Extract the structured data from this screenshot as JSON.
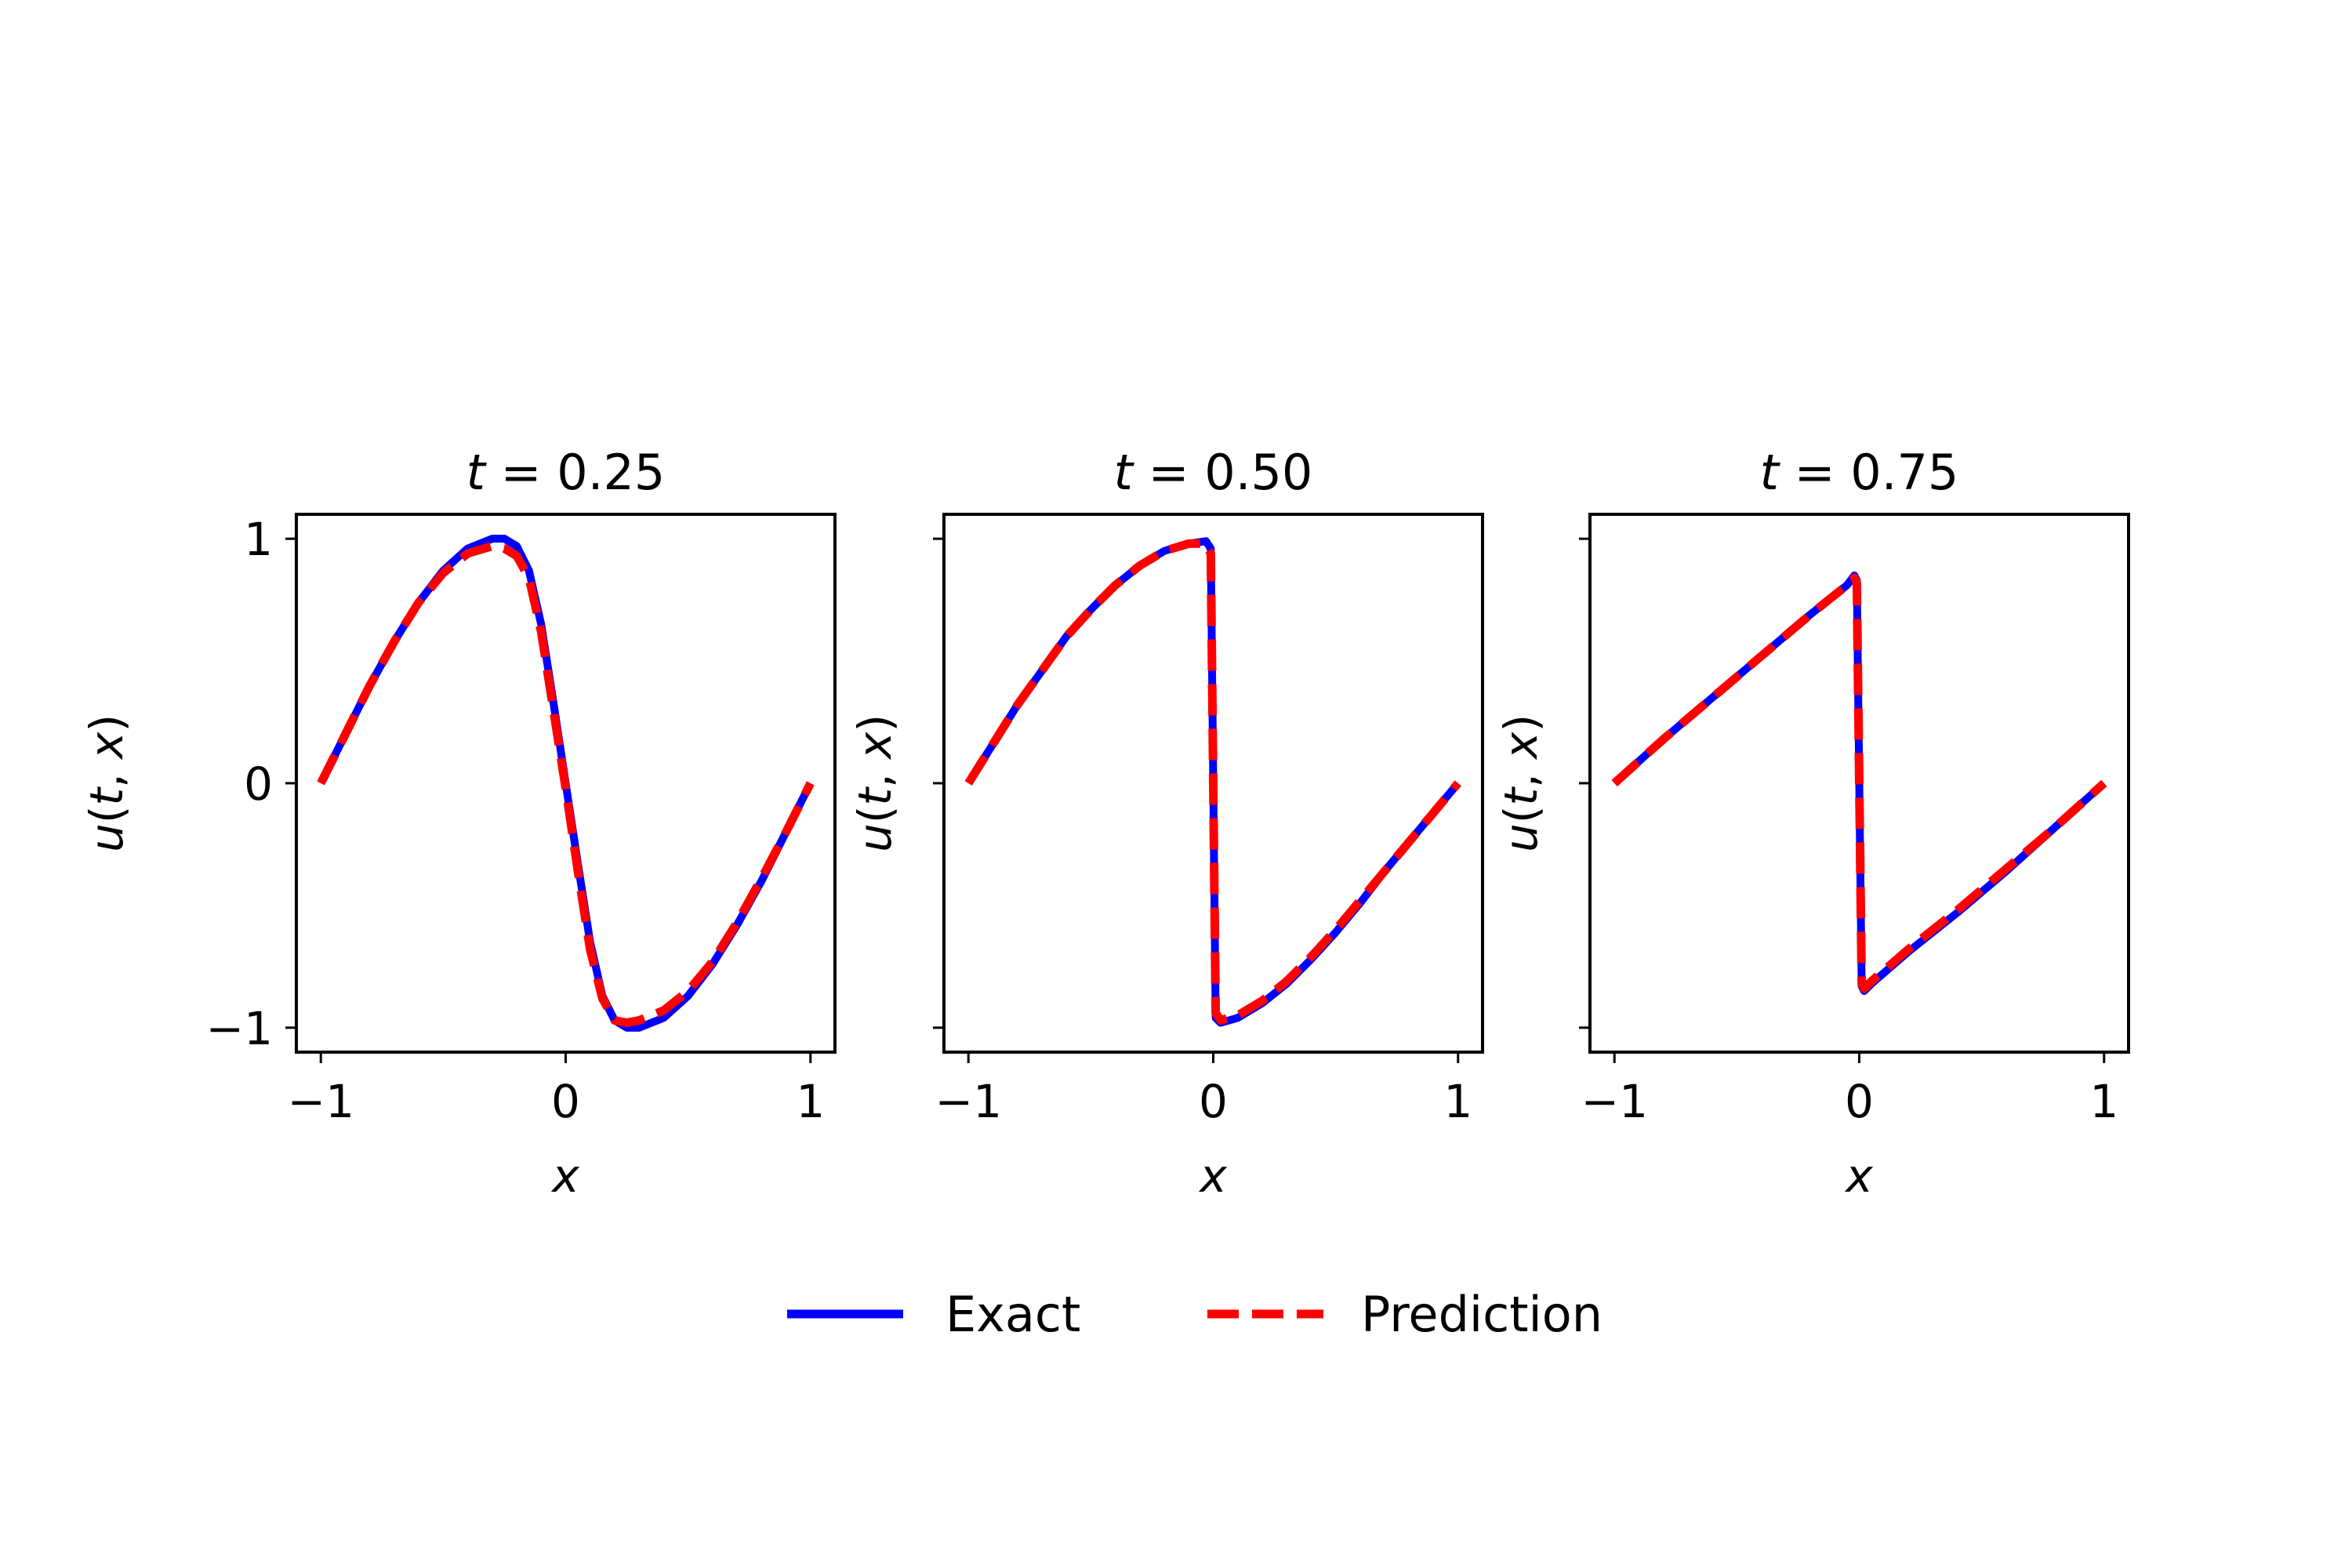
{
  "chart_data": [
    {
      "type": "line",
      "title_var": "t",
      "title_value": "0.25",
      "xlabel": "x",
      "ylabel": "u(t, x)",
      "xlim": [
        -1.1,
        1.1
      ],
      "ylim": [
        -1.1,
        1.1
      ],
      "xticks": [
        -1,
        0,
        1
      ],
      "xtick_labels": [
        "−1",
        "0",
        "1"
      ],
      "yticks": [
        -1,
        0,
        1
      ],
      "ytick_labels": [
        "−1",
        "0",
        "1"
      ],
      "show_ytick_labels": true,
      "grid": false,
      "series": [
        {
          "name": "Exact",
          "color": "#0000ff",
          "style": "solid",
          "x": [
            -1.0,
            -0.9,
            -0.8,
            -0.7,
            -0.6,
            -0.5,
            -0.4,
            -0.3,
            -0.25,
            -0.2,
            -0.15,
            -0.1,
            -0.05,
            0.0,
            0.05,
            0.1,
            0.15,
            0.2,
            0.25,
            0.3,
            0.4,
            0.5,
            0.6,
            0.7,
            0.8,
            0.9,
            1.0
          ],
          "y": [
            0.0,
            0.2,
            0.4,
            0.58,
            0.74,
            0.87,
            0.96,
            1.0,
            1.0,
            0.97,
            0.87,
            0.65,
            0.33,
            0.0,
            -0.33,
            -0.65,
            -0.87,
            -0.97,
            -1.0,
            -1.0,
            -0.96,
            -0.87,
            -0.74,
            -0.58,
            -0.4,
            -0.2,
            0.0
          ]
        },
        {
          "name": "Prediction",
          "color": "#ff0000",
          "style": "dashed",
          "x": [
            -1.0,
            -0.9,
            -0.8,
            -0.7,
            -0.6,
            -0.5,
            -0.4,
            -0.3,
            -0.25,
            -0.2,
            -0.15,
            -0.1,
            -0.05,
            0.0,
            0.05,
            0.1,
            0.15,
            0.2,
            0.25,
            0.3,
            0.4,
            0.5,
            0.6,
            0.7,
            0.8,
            0.9,
            1.0
          ],
          "y": [
            0.0,
            0.2,
            0.4,
            0.58,
            0.74,
            0.86,
            0.94,
            0.97,
            0.96,
            0.93,
            0.84,
            0.62,
            0.3,
            -0.02,
            -0.36,
            -0.68,
            -0.88,
            -0.97,
            -0.98,
            -0.97,
            -0.93,
            -0.85,
            -0.73,
            -0.57,
            -0.39,
            -0.2,
            0.0
          ]
        }
      ]
    },
    {
      "type": "line",
      "title_var": "t",
      "title_value": "0.50",
      "xlabel": "x",
      "ylabel": "u(t, x)",
      "xlim": [
        -1.1,
        1.1
      ],
      "ylim": [
        -1.1,
        1.1
      ],
      "xticks": [
        -1,
        0,
        1
      ],
      "xtick_labels": [
        "−1",
        "0",
        "1"
      ],
      "yticks": [
        -1,
        0,
        1
      ],
      "ytick_labels": [
        "",
        "",
        ""
      ],
      "show_ytick_labels": false,
      "grid": false,
      "series": [
        {
          "name": "Exact",
          "color": "#0000ff",
          "style": "solid",
          "x": [
            -1.0,
            -0.9,
            -0.8,
            -0.7,
            -0.6,
            -0.5,
            -0.4,
            -0.3,
            -0.2,
            -0.1,
            -0.03,
            -0.01,
            0.0,
            0.01,
            0.03,
            0.1,
            0.2,
            0.3,
            0.4,
            0.5,
            0.6,
            0.7,
            0.8,
            0.9,
            1.0
          ],
          "y": [
            0.0,
            0.16,
            0.32,
            0.46,
            0.6,
            0.71,
            0.81,
            0.89,
            0.95,
            0.98,
            0.99,
            0.96,
            0.0,
            -0.96,
            -0.98,
            -0.96,
            -0.9,
            -0.82,
            -0.72,
            -0.61,
            -0.49,
            -0.36,
            -0.24,
            -0.12,
            0.0
          ]
        },
        {
          "name": "Prediction",
          "color": "#ff0000",
          "style": "dashed",
          "x": [
            -1.0,
            -0.9,
            -0.8,
            -0.7,
            -0.6,
            -0.5,
            -0.4,
            -0.3,
            -0.2,
            -0.1,
            -0.03,
            -0.01,
            0.0,
            0.01,
            0.03,
            0.1,
            0.2,
            0.3,
            0.4,
            0.5,
            0.6,
            0.7,
            0.8,
            0.9,
            1.0
          ],
          "y": [
            0.0,
            0.16,
            0.32,
            0.46,
            0.6,
            0.71,
            0.81,
            0.89,
            0.95,
            0.98,
            0.98,
            0.94,
            0.0,
            -0.94,
            -0.97,
            -0.95,
            -0.89,
            -0.81,
            -0.71,
            -0.6,
            -0.48,
            -0.36,
            -0.24,
            -0.12,
            0.0
          ]
        }
      ]
    },
    {
      "type": "line",
      "title_var": "t",
      "title_value": "0.75",
      "xlabel": "x",
      "ylabel": "u(t, x)",
      "xlim": [
        -1.1,
        1.1
      ],
      "ylim": [
        -1.1,
        1.1
      ],
      "xticks": [
        -1,
        0,
        1
      ],
      "xtick_labels": [
        "−1",
        "0",
        "1"
      ],
      "yticks": [
        -1,
        0,
        1
      ],
      "ytick_labels": [
        "",
        "",
        ""
      ],
      "show_ytick_labels": false,
      "grid": false,
      "series": [
        {
          "name": "Exact",
          "color": "#0000ff",
          "style": "solid",
          "x": [
            -1.0,
            -0.8,
            -0.6,
            -0.4,
            -0.2,
            -0.05,
            -0.02,
            -0.01,
            0.0,
            0.01,
            0.02,
            0.05,
            0.2,
            0.4,
            0.6,
            0.8,
            1.0
          ],
          "y": [
            0.0,
            0.18,
            0.35,
            0.52,
            0.69,
            0.81,
            0.85,
            0.83,
            0.0,
            -0.83,
            -0.85,
            -0.82,
            -0.69,
            -0.53,
            -0.36,
            -0.18,
            0.0
          ]
        },
        {
          "name": "Prediction",
          "color": "#ff0000",
          "style": "dashed",
          "x": [
            -1.0,
            -0.8,
            -0.6,
            -0.4,
            -0.2,
            -0.05,
            -0.02,
            -0.01,
            0.0,
            0.01,
            0.02,
            0.05,
            0.2,
            0.4,
            0.6,
            0.8,
            1.0
          ],
          "y": [
            0.0,
            0.18,
            0.35,
            0.52,
            0.69,
            0.81,
            0.84,
            0.82,
            0.0,
            -0.82,
            -0.84,
            -0.81,
            -0.68,
            -0.52,
            -0.35,
            -0.18,
            0.0
          ]
        }
      ]
    }
  ],
  "legend": {
    "placement": "bottom-center",
    "entries": [
      {
        "label": "Exact",
        "color": "#0000ff",
        "style": "solid"
      },
      {
        "label": "Prediction",
        "color": "#ff0000",
        "style": "dashed"
      }
    ]
  }
}
